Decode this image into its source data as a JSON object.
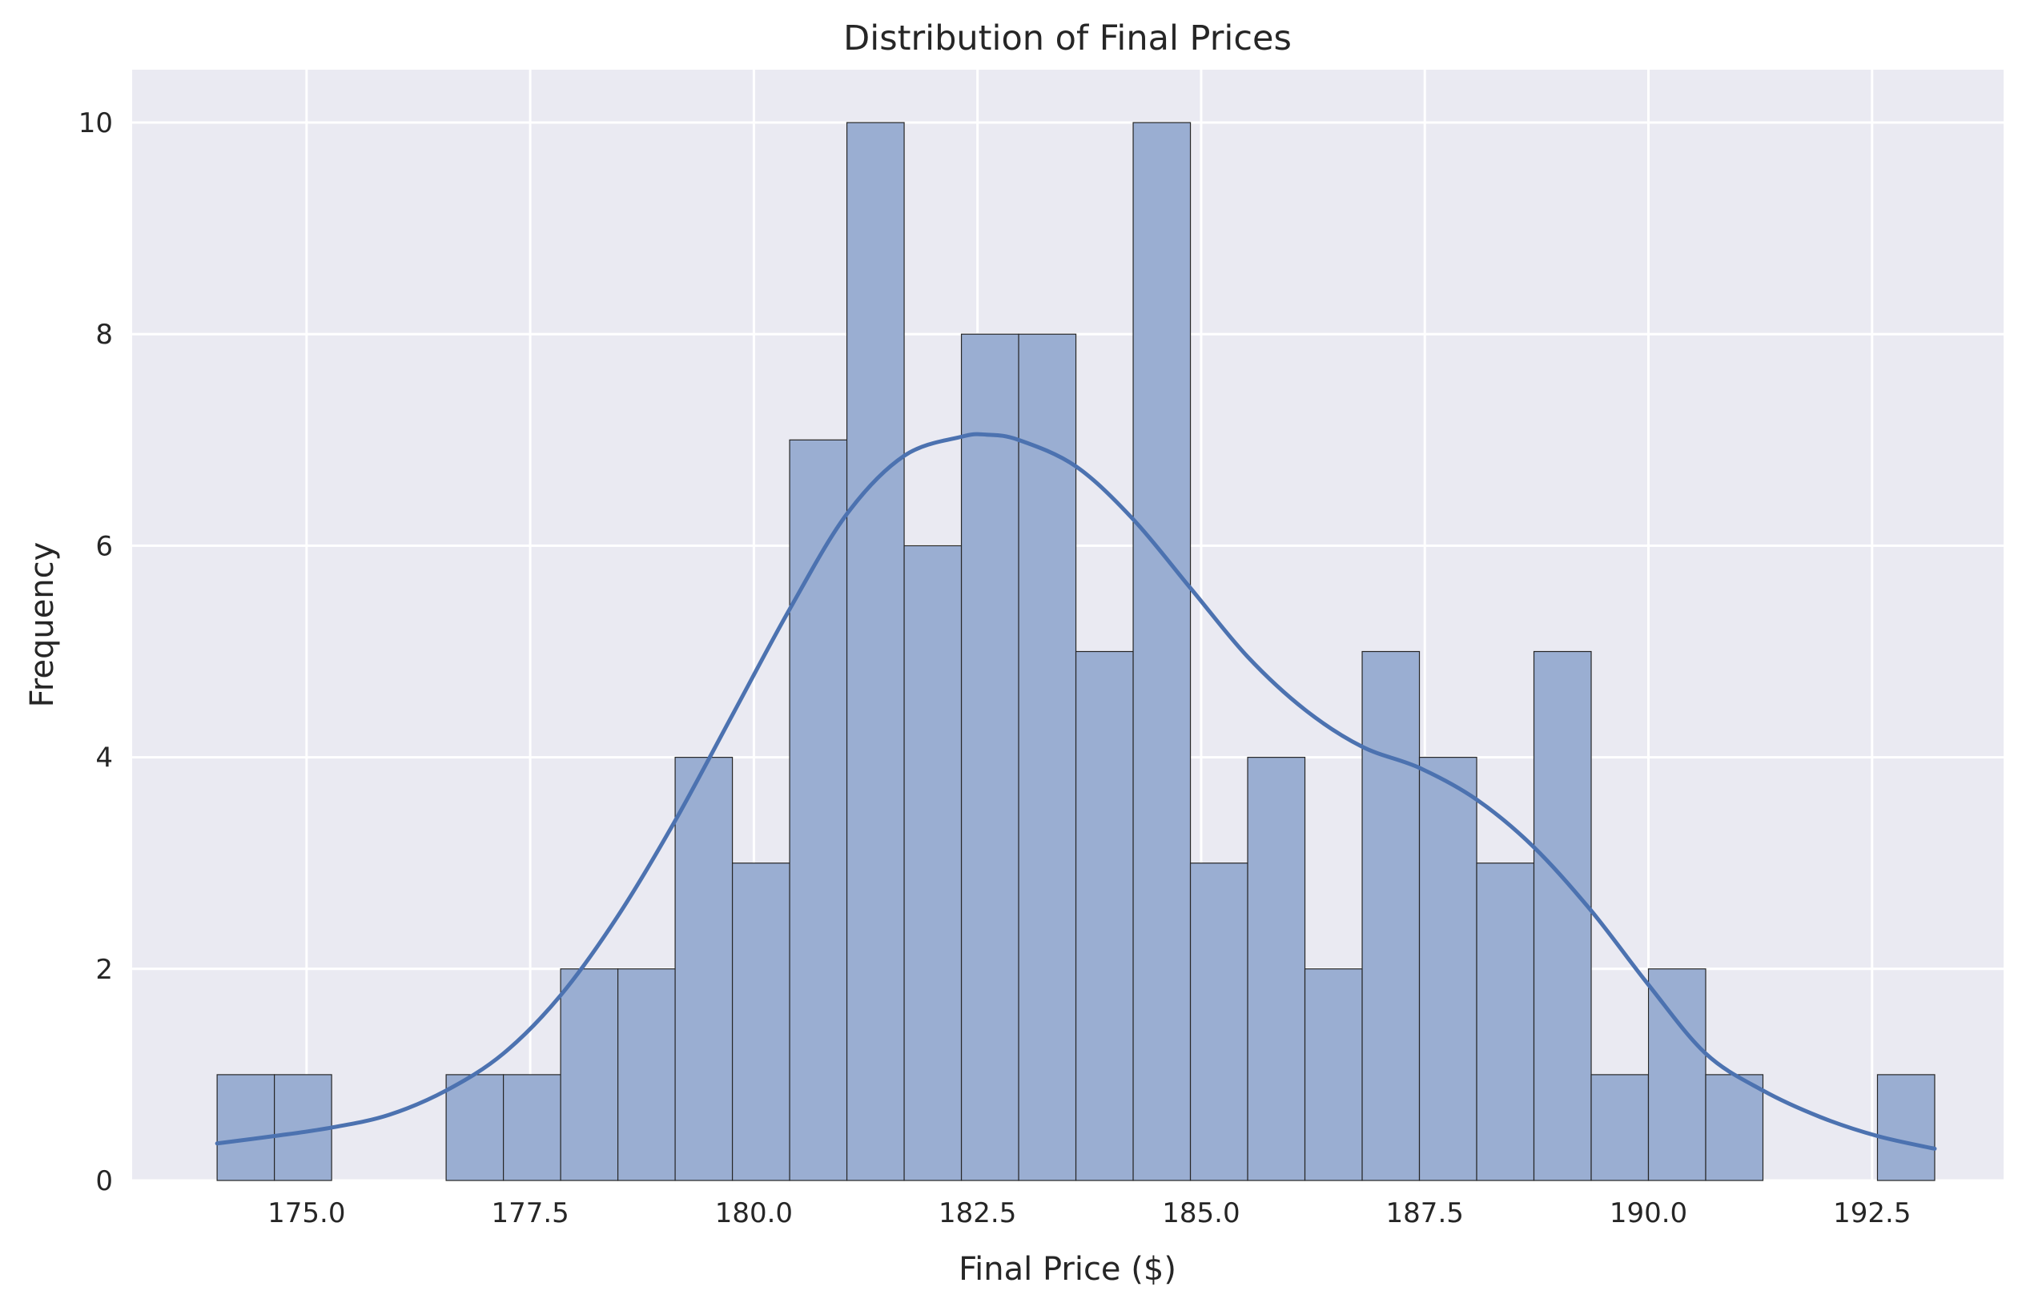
{
  "chart_data": {
    "type": "bar",
    "title": "Distribution of Final Prices",
    "xlabel": "Final Price ($)",
    "ylabel": "Frequency",
    "xlim": [
      173.05,
      193.97
    ],
    "ylim": [
      0,
      10.5
    ],
    "grid": true,
    "x_ticks": [
      175.0,
      177.5,
      180.0,
      182.5,
      185.0,
      187.5,
      190.0,
      192.5
    ],
    "x_tick_labels": [
      "175.0",
      "177.5",
      "180.0",
      "182.5",
      "185.0",
      "187.5",
      "190.0",
      "192.5"
    ],
    "y_ticks": [
      0,
      2,
      4,
      6,
      8,
      10
    ],
    "y_tick_labels": [
      "0",
      "2",
      "4",
      "6",
      "8",
      "10"
    ],
    "bin_start": 174.0,
    "bin_width": 0.64,
    "values": [
      1,
      1,
      0,
      0,
      1,
      1,
      2,
      2,
      4,
      3,
      7,
      10,
      6,
      8,
      8,
      5,
      10,
      3,
      4,
      2,
      5,
      4,
      3,
      5,
      1,
      2,
      1,
      0,
      0,
      1
    ],
    "kde": {
      "x": [
        174.0,
        174.64,
        175.28,
        175.92,
        176.56,
        177.2,
        177.84,
        178.48,
        179.12,
        179.76,
        180.4,
        181.04,
        181.68,
        182.32,
        182.6,
        182.96,
        183.6,
        184.24,
        184.88,
        185.52,
        186.16,
        186.8,
        187.44,
        188.08,
        188.72,
        189.36,
        190.0,
        190.64,
        191.28,
        191.92,
        192.56,
        193.2
      ],
      "y": [
        0.35,
        0.42,
        0.5,
        0.62,
        0.85,
        1.2,
        1.75,
        2.5,
        3.4,
        4.4,
        5.4,
        6.3,
        6.85,
        7.03,
        7.05,
        7.0,
        6.75,
        6.25,
        5.6,
        4.95,
        4.45,
        4.1,
        3.9,
        3.6,
        3.15,
        2.55,
        1.85,
        1.2,
        0.85,
        0.6,
        0.42,
        0.3
      ]
    },
    "colors": {
      "bar_fill": "#9aaed2",
      "bar_edge": "#262626",
      "kde_line": "#4c72b0",
      "plot_background": "#eaeaf2",
      "grid": "#ffffff"
    }
  }
}
